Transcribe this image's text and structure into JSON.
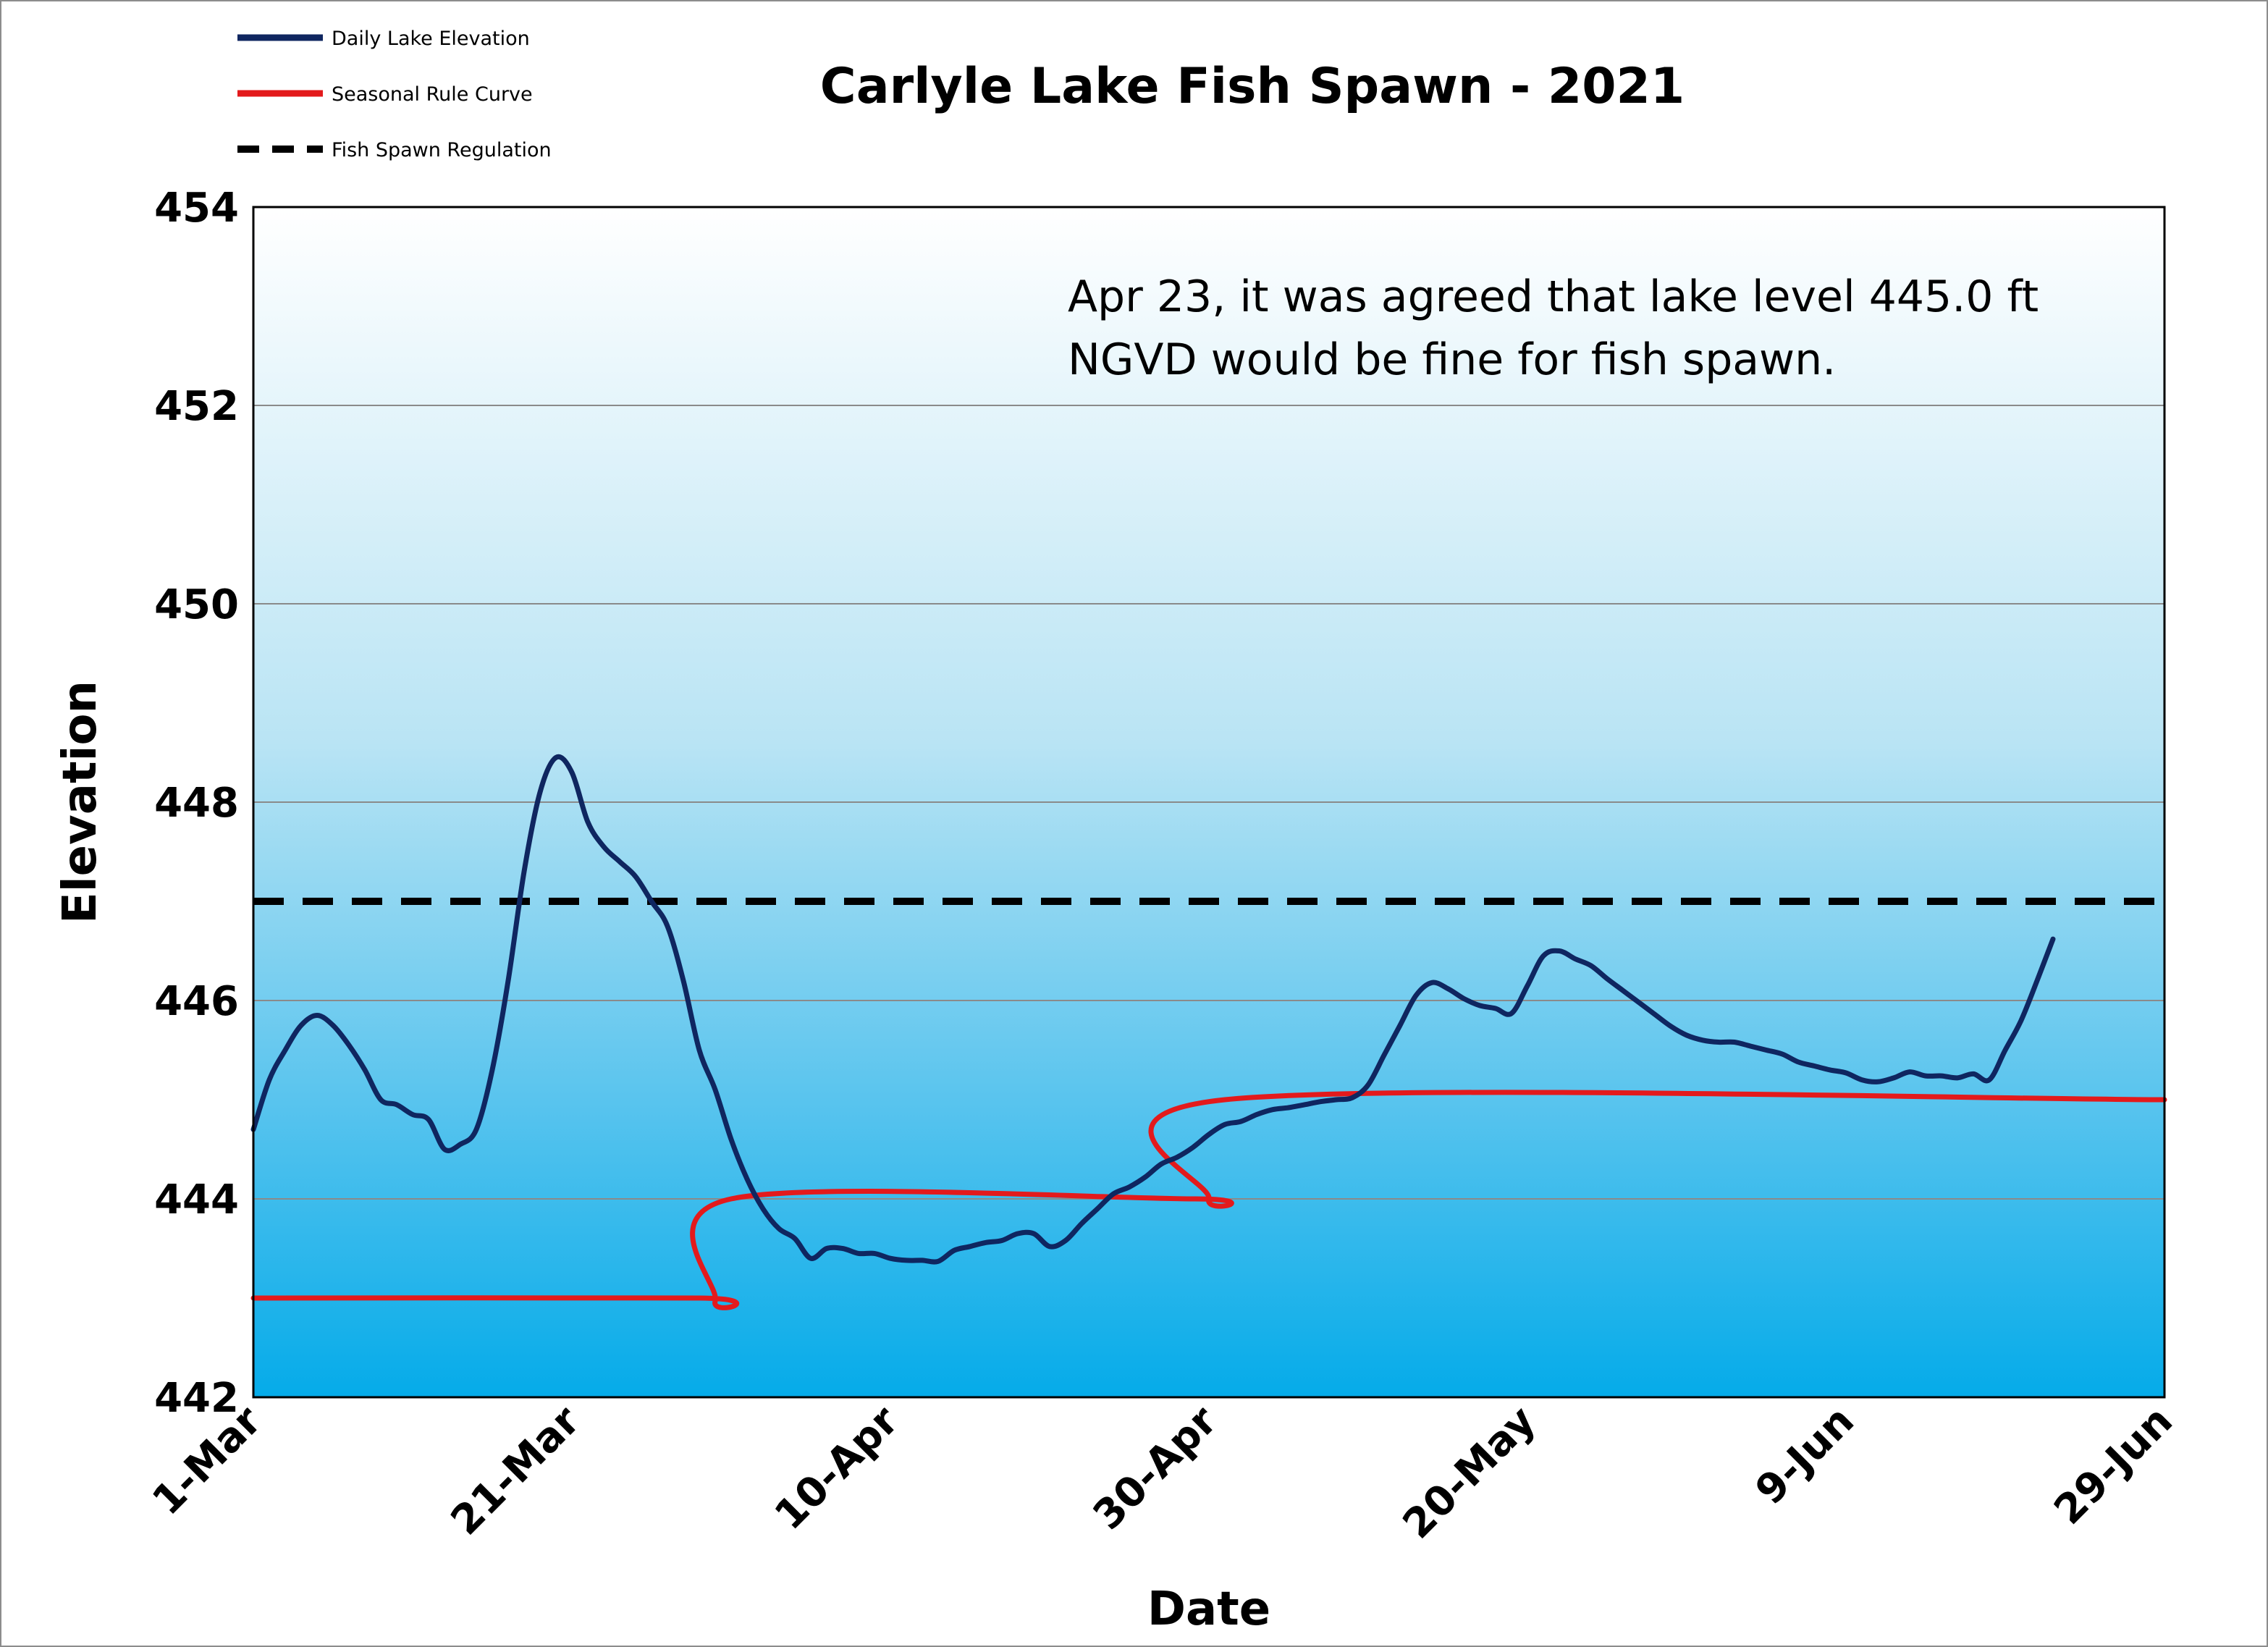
{
  "chart_data": {
    "type": "line",
    "title": "Carlyle Lake Fish Spawn - 2021",
    "xlabel": "Date",
    "ylabel": "Elevation",
    "x_ticks": [
      "1-Mar",
      "21-Mar",
      "10-Apr",
      "30-Apr",
      "20-May",
      "9-Jun",
      "29-Jun"
    ],
    "x_range": [
      "2021-03-01",
      "2021-06-29"
    ],
    "y_ticks": [
      "454",
      "452",
      "450",
      "448",
      "446",
      "444",
      "442"
    ],
    "ylim": [
      442,
      454
    ],
    "grid": "horizontal",
    "legend_position": "top-left",
    "annotation": {
      "lines": [
        "Apr 23, it was agreed that lake level 445.0 ft",
        "NGVD would be fine for fish spawn."
      ],
      "x": "2021-04-24",
      "y": 453.1
    },
    "series": [
      {
        "name": "Daily Lake Elevation",
        "color": "#0f2660",
        "style": "solid",
        "points": [
          [
            "2021-03-01",
            444.7
          ],
          [
            "2021-03-02",
            445.2
          ],
          [
            "2021-03-03",
            445.5
          ],
          [
            "2021-03-04",
            445.75
          ],
          [
            "2021-03-05",
            445.85
          ],
          [
            "2021-03-06",
            445.75
          ],
          [
            "2021-03-07",
            445.55
          ],
          [
            "2021-03-08",
            445.3
          ],
          [
            "2021-03-09",
            445.0
          ],
          [
            "2021-03-10",
            444.95
          ],
          [
            "2021-03-11",
            444.85
          ],
          [
            "2021-03-12",
            444.8
          ],
          [
            "2021-03-13",
            444.5
          ],
          [
            "2021-03-14",
            444.55
          ],
          [
            "2021-03-15",
            444.7
          ],
          [
            "2021-03-16",
            445.3
          ],
          [
            "2021-03-17",
            446.2
          ],
          [
            "2021-03-18",
            447.3
          ],
          [
            "2021-03-19",
            448.1
          ],
          [
            "2021-03-20",
            448.45
          ],
          [
            "2021-03-21",
            448.3
          ],
          [
            "2021-03-22",
            447.8
          ],
          [
            "2021-03-23",
            447.55
          ],
          [
            "2021-03-24",
            447.4
          ],
          [
            "2021-03-25",
            447.25
          ],
          [
            "2021-03-26",
            447.0
          ],
          [
            "2021-03-27",
            446.75
          ],
          [
            "2021-03-28",
            446.2
          ],
          [
            "2021-03-29",
            445.5
          ],
          [
            "2021-03-30",
            445.1
          ],
          [
            "2021-03-31",
            444.6
          ],
          [
            "2021-04-01",
            444.2
          ],
          [
            "2021-04-02",
            443.9
          ],
          [
            "2021-04-03",
            443.7
          ],
          [
            "2021-04-04",
            443.6
          ],
          [
            "2021-04-05",
            443.4
          ],
          [
            "2021-04-06",
            443.5
          ],
          [
            "2021-04-07",
            443.5
          ],
          [
            "2021-04-08",
            443.45
          ],
          [
            "2021-04-09",
            443.45
          ],
          [
            "2021-04-10",
            443.4
          ],
          [
            "2021-04-11",
            443.38
          ],
          [
            "2021-04-12",
            443.38
          ],
          [
            "2021-04-13",
            443.37
          ],
          [
            "2021-04-14",
            443.48
          ],
          [
            "2021-04-15",
            443.52
          ],
          [
            "2021-04-16",
            443.56
          ],
          [
            "2021-04-17",
            443.58
          ],
          [
            "2021-04-18",
            443.65
          ],
          [
            "2021-04-19",
            443.65
          ],
          [
            "2021-04-20",
            443.52
          ],
          [
            "2021-04-21",
            443.58
          ],
          [
            "2021-04-22",
            443.75
          ],
          [
            "2021-04-23",
            443.9
          ],
          [
            "2021-04-24",
            444.05
          ],
          [
            "2021-04-25",
            444.12
          ],
          [
            "2021-04-26",
            444.22
          ],
          [
            "2021-04-27",
            444.35
          ],
          [
            "2021-04-28",
            444.42
          ],
          [
            "2021-04-29",
            444.52
          ],
          [
            "2021-04-30",
            444.65
          ],
          [
            "2021-05-01",
            444.75
          ],
          [
            "2021-05-02",
            444.78
          ],
          [
            "2021-05-03",
            444.85
          ],
          [
            "2021-05-04",
            444.9
          ],
          [
            "2021-05-05",
            444.92
          ],
          [
            "2021-05-06",
            444.95
          ],
          [
            "2021-05-07",
            444.98
          ],
          [
            "2021-05-08",
            445.0
          ],
          [
            "2021-05-09",
            445.02
          ],
          [
            "2021-05-10",
            445.15
          ],
          [
            "2021-05-11",
            445.45
          ],
          [
            "2021-05-12",
            445.75
          ],
          [
            "2021-05-13",
            446.05
          ],
          [
            "2021-05-14",
            446.18
          ],
          [
            "2021-05-15",
            446.12
          ],
          [
            "2021-05-16",
            446.02
          ],
          [
            "2021-05-17",
            445.95
          ],
          [
            "2021-05-18",
            445.92
          ],
          [
            "2021-05-19",
            445.87
          ],
          [
            "2021-05-20",
            446.15
          ],
          [
            "2021-05-21",
            446.45
          ],
          [
            "2021-05-22",
            446.5
          ],
          [
            "2021-05-23",
            446.42
          ],
          [
            "2021-05-24",
            446.35
          ],
          [
            "2021-05-25",
            446.22
          ],
          [
            "2021-05-26",
            446.1
          ],
          [
            "2021-05-27",
            445.98
          ],
          [
            "2021-05-28",
            445.86
          ],
          [
            "2021-05-29",
            445.74
          ],
          [
            "2021-05-30",
            445.65
          ],
          [
            "2021-05-31",
            445.6
          ],
          [
            "2021-06-01",
            445.58
          ],
          [
            "2021-06-02",
            445.58
          ],
          [
            "2021-06-03",
            445.54
          ],
          [
            "2021-06-04",
            445.5
          ],
          [
            "2021-06-05",
            445.46
          ],
          [
            "2021-06-06",
            445.38
          ],
          [
            "2021-06-07",
            445.34
          ],
          [
            "2021-06-08",
            445.3
          ],
          [
            "2021-06-09",
            445.27
          ],
          [
            "2021-06-10",
            445.2
          ],
          [
            "2021-06-11",
            445.18
          ],
          [
            "2021-06-12",
            445.22
          ],
          [
            "2021-06-13",
            445.28
          ],
          [
            "2021-06-14",
            445.24
          ],
          [
            "2021-06-15",
            445.24
          ],
          [
            "2021-06-16",
            445.22
          ],
          [
            "2021-06-17",
            445.26
          ],
          [
            "2021-06-18",
            445.2
          ],
          [
            "2021-06-19",
            445.5
          ],
          [
            "2021-06-20",
            445.8
          ],
          [
            "2021-06-21",
            446.2
          ],
          [
            "2021-06-22",
            446.62
          ]
        ]
      },
      {
        "name": "Seasonal Rule Curve",
        "color": "#e31a1c",
        "style": "solid",
        "points": [
          [
            "2021-03-01",
            443.0
          ],
          [
            "2021-03-29",
            443.0
          ],
          [
            "2021-03-30",
            442.97
          ],
          [
            "2021-03-31",
            444.0
          ],
          [
            "2021-04-29",
            444.0
          ],
          [
            "2021-04-30",
            444.0
          ],
          [
            "2021-05-01",
            445.0
          ],
          [
            "2021-06-29",
            445.0
          ]
        ]
      },
      {
        "name": "Fish Spawn Regulation",
        "color": "#000000",
        "style": "dashed",
        "points": [
          [
            "2021-03-01",
            447.0
          ],
          [
            "2021-06-29",
            447.0
          ]
        ]
      }
    ]
  }
}
